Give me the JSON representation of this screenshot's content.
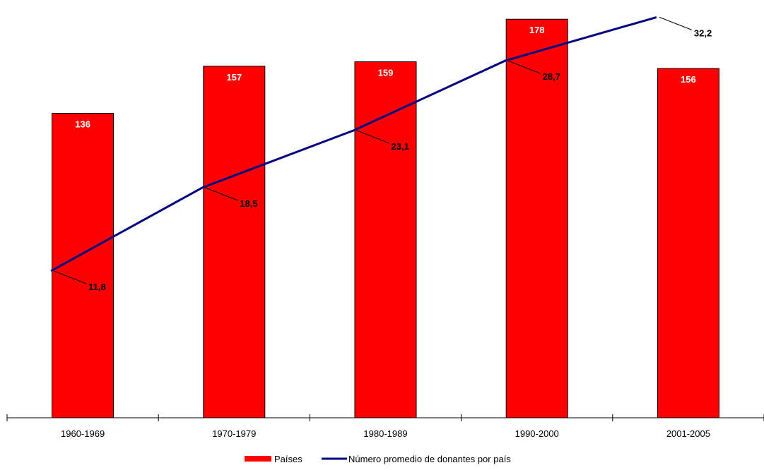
{
  "chart_data": {
    "type": "bar",
    "categories": [
      "1960-1969",
      "1970-1979",
      "1980-1989",
      "1990-2000",
      "2001-2005"
    ],
    "series": [
      {
        "name": "Países",
        "kind": "bar",
        "color": "#ff0000",
        "values": [
          136,
          157,
          159,
          178,
          156
        ],
        "labels": [
          "136",
          "157",
          "159",
          "178",
          "156"
        ]
      },
      {
        "name": "Número promedio de donantes por país",
        "kind": "line",
        "color": "#000080",
        "values": [
          11.8,
          18.5,
          23.1,
          28.7,
          32.2
        ],
        "labels": [
          "11,8",
          "18,5",
          "23,1",
          "28,7",
          "32,2"
        ]
      }
    ],
    "title": "",
    "xlabel": "",
    "ylabel": "",
    "bar_ylim": [
      0,
      185
    ],
    "line_ylim": [
      0,
      33.3
    ],
    "grid": false,
    "legend": "bottom"
  }
}
